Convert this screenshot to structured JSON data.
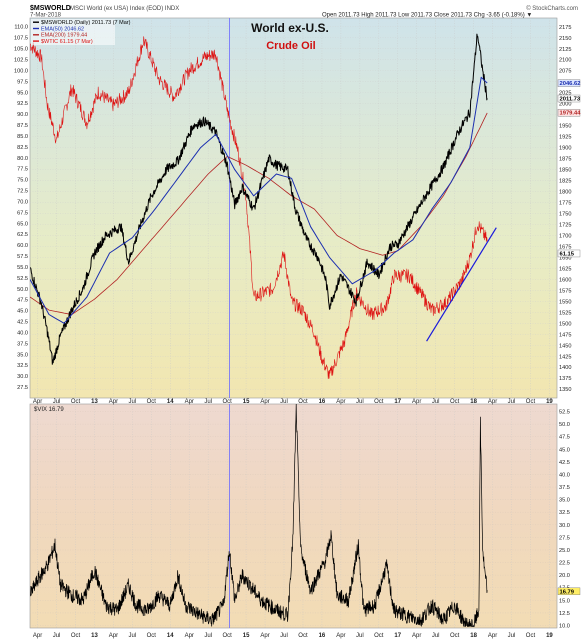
{
  "header": {
    "symbol": "$MSWORLD",
    "description": "MSCI World (ex USA) Index (EOD) INDX",
    "date": "7-Mar-2018",
    "ohlc": "Open 2011.73  High 2011.73  Low 2011.73  Close 2011.73  Chg -3.65 (-0.18%) ▼",
    "watermark": "© StockCharts.com"
  },
  "legend": [
    {
      "label": "$MSWORLD (Daily) 2011.73 (7 Mar)",
      "color": "#000000"
    },
    {
      "label": "EMA(50) 2046.62",
      "color": "#1b2fb0"
    },
    {
      "label": "EMA(200) 1979.44",
      "color": "#b22222"
    },
    {
      "label": "$WTIC 61.15 (7 Mar)",
      "color": "#dd1111"
    }
  ],
  "annotations": {
    "title": "World ex-U.S.",
    "subtitle": "Crude Oil"
  },
  "vix_legend": "$VIX 16.79",
  "colors": {
    "msworld": "#000000",
    "ema50": "#1b2fb0",
    "ema200": "#b22222",
    "wtic": "#dd1111",
    "trendline": "#1a1adc",
    "vline": "#6a6aff",
    "vix": "#000000"
  },
  "chart_data": [
    {
      "type": "line",
      "title": "World ex-U.S.",
      "x_ticks": [
        "Apr",
        "Jul",
        "Oct",
        "13",
        "Apr",
        "Jul",
        "Oct",
        "14",
        "Apr",
        "Jul",
        "Oct",
        "15",
        "Apr",
        "Jul",
        "Oct",
        "16",
        "Apr",
        "Jul",
        "Oct",
        "17",
        "Apr",
        "Jul",
        "Oct",
        "18",
        "Apr",
        "Jul",
        "Oct",
        "19"
      ],
      "x_range": [
        2012.15,
        2019.1
      ],
      "y_right": {
        "range": [
          1330,
          2195
        ],
        "ticks": [
          1350,
          1375,
          1400,
          1425,
          1450,
          1475,
          1500,
          1525,
          1550,
          1575,
          1600,
          1625,
          1650,
          1675,
          1700,
          1725,
          1750,
          1775,
          1800,
          1825,
          1850,
          1875,
          1900,
          1925,
          1950,
          1975,
          2000,
          2025,
          2050,
          2075,
          2100,
          2125,
          2150,
          2175
        ]
      },
      "y_left": {
        "range": [
          25,
          112
        ],
        "ticks": [
          27.5,
          30.0,
          32.5,
          35.0,
          37.5,
          40.0,
          42.5,
          45.0,
          47.5,
          50.0,
          52.5,
          55.0,
          57.5,
          60.0,
          62.5,
          65.0,
          67.5,
          70.0,
          72.5,
          75.0,
          77.5,
          80.0,
          82.5,
          85.0,
          87.5,
          90.0,
          92.5,
          95.0,
          97.5,
          100.0,
          102.5,
          105.0,
          107.5,
          110.0
        ]
      },
      "right_badges": [
        "2046.62",
        "2011.73",
        "1979.44",
        "61.15"
      ],
      "series": [
        {
          "name": "$MSWORLD",
          "axis": "right",
          "x": [
            2012.15,
            2012.3,
            2012.38,
            2012.45,
            2012.55,
            2012.7,
            2012.85,
            2013.0,
            2013.15,
            2013.35,
            2013.45,
            2013.6,
            2013.75,
            2013.95,
            2014.1,
            2014.3,
            2014.45,
            2014.6,
            2014.75,
            2014.85,
            2014.95,
            2015.1,
            2015.3,
            2015.4,
            2015.55,
            2015.65,
            2015.8,
            2015.95,
            2016.05,
            2016.1,
            2016.25,
            2016.45,
            2016.6,
            2016.75,
            2016.9,
            2017.0,
            2017.2,
            2017.4,
            2017.6,
            2017.8,
            2017.95,
            2018.05,
            2018.12,
            2018.18
          ],
          "y": [
            1625,
            1545,
            1480,
            1410,
            1470,
            1530,
            1580,
            1660,
            1700,
            1720,
            1640,
            1720,
            1790,
            1850,
            1870,
            1950,
            1960,
            1935,
            1860,
            1770,
            1810,
            1760,
            1875,
            1860,
            1850,
            1760,
            1690,
            1650,
            1600,
            1540,
            1610,
            1550,
            1640,
            1610,
            1675,
            1680,
            1740,
            1800,
            1855,
            1935,
            1980,
            2160,
            2075,
            2012
          ]
        },
        {
          "name": "EMA(50)",
          "axis": "right",
          "x": [
            2012.15,
            2012.4,
            2012.6,
            2012.9,
            2013.2,
            2013.5,
            2013.8,
            2014.1,
            2014.4,
            2014.6,
            2014.85,
            2015.1,
            2015.4,
            2015.6,
            2015.85,
            2016.1,
            2016.4,
            2016.7,
            2016.95,
            2017.2,
            2017.45,
            2017.7,
            2017.95,
            2018.1,
            2018.18
          ],
          "y": [
            1600,
            1520,
            1500,
            1560,
            1660,
            1695,
            1760,
            1830,
            1900,
            1930,
            1850,
            1790,
            1840,
            1830,
            1720,
            1650,
            1590,
            1620,
            1660,
            1690,
            1760,
            1820,
            1900,
            2060,
            2047
          ]
        },
        {
          "name": "EMA(200)",
          "axis": "right",
          "x": [
            2012.15,
            2012.4,
            2012.7,
            2013.0,
            2013.3,
            2013.6,
            2013.9,
            2014.2,
            2014.5,
            2014.75,
            2015.0,
            2015.3,
            2015.6,
            2015.9,
            2016.2,
            2016.5,
            2016.8,
            2017.0,
            2017.3,
            2017.6,
            2017.9,
            2018.18
          ],
          "y": [
            1560,
            1530,
            1520,
            1555,
            1600,
            1660,
            1720,
            1780,
            1840,
            1880,
            1860,
            1830,
            1790,
            1760,
            1700,
            1670,
            1655,
            1665,
            1720,
            1790,
            1880,
            1979
          ]
        },
        {
          "name": "$WTIC",
          "axis": "left",
          "x": [
            2012.15,
            2012.3,
            2012.38,
            2012.5,
            2012.7,
            2012.9,
            2013.05,
            2013.25,
            2013.45,
            2013.65,
            2013.85,
            2014.05,
            2014.25,
            2014.45,
            2014.6,
            2014.75,
            2014.9,
            2015.0,
            2015.1,
            2015.35,
            2015.5,
            2015.6,
            2015.75,
            2015.9,
            2016.0,
            2016.1,
            2016.3,
            2016.45,
            2016.65,
            2016.85,
            2016.95,
            2017.15,
            2017.3,
            2017.45,
            2017.65,
            2017.85,
            2017.95,
            2018.05,
            2018.18
          ],
          "y": [
            106,
            103,
            92,
            84,
            96,
            88,
            95,
            92,
            95,
            107,
            98,
            94,
            100,
            103,
            104,
            91,
            81,
            71,
            48,
            50,
            58,
            47,
            45,
            40,
            34,
            30,
            38,
            49,
            44,
            46,
            53,
            53,
            49,
            45,
            47,
            52,
            57,
            65,
            61
          ]
        },
        {
          "name": "trendline",
          "axis": "left",
          "x": [
            2017.38,
            2018.3
          ],
          "y": [
            38,
            64
          ]
        }
      ],
      "vline_x": 2014.78
    },
    {
      "type": "line",
      "title": "$VIX",
      "x_ticks": [
        "Apr",
        "Jul",
        "Oct",
        "13",
        "Apr",
        "Jul",
        "Oct",
        "14",
        "Apr",
        "Jul",
        "Oct",
        "15",
        "Apr",
        "Jul",
        "Oct",
        "16",
        "Apr",
        "Jul",
        "Oct",
        "17",
        "Apr",
        "Jul",
        "Oct",
        "18",
        "Apr",
        "Jul",
        "Oct",
        "19"
      ],
      "y_range": [
        9.5,
        54
      ],
      "y_ticks": [
        10.0,
        12.5,
        15.0,
        17.5,
        20.0,
        22.5,
        25.0,
        27.5,
        30.0,
        32.5,
        35.0,
        37.5,
        40.0,
        42.5,
        45.0,
        47.5,
        50.0,
        52.5
      ],
      "right_badges": [
        "16.79"
      ],
      "series": [
        {
          "name": "$VIX",
          "x": [
            2012.15,
            2012.25,
            2012.38,
            2012.48,
            2012.55,
            2012.7,
            2012.85,
            2013.0,
            2013.15,
            2013.3,
            2013.45,
            2013.55,
            2013.7,
            2013.85,
            2014.0,
            2014.1,
            2014.2,
            2014.4,
            2014.55,
            2014.7,
            2014.78,
            2014.85,
            2014.95,
            2015.05,
            2015.2,
            2015.4,
            2015.55,
            2015.62,
            2015.66,
            2015.72,
            2015.85,
            2015.95,
            2016.05,
            2016.12,
            2016.2,
            2016.35,
            2016.48,
            2016.55,
            2016.7,
            2016.85,
            2016.95,
            2017.1,
            2017.3,
            2017.45,
            2017.6,
            2017.75,
            2017.9,
            2018.0,
            2018.07,
            2018.09,
            2018.12,
            2018.15,
            2018.18
          ],
          "y": [
            16,
            19,
            22,
            26,
            18,
            16,
            15,
            21,
            14,
            13,
            18,
            14,
            13,
            16,
            14,
            20,
            14,
            12,
            11,
            14,
            25,
            15,
            20,
            18,
            15,
            13,
            12,
            28,
            53,
            25,
            17,
            20,
            23,
            28,
            16,
            15,
            26,
            13,
            14,
            22,
            13,
            12,
            11,
            14,
            11,
            14,
            10,
            10,
            13,
            50,
            25,
            20,
            17
          ]
        }
      ]
    }
  ]
}
